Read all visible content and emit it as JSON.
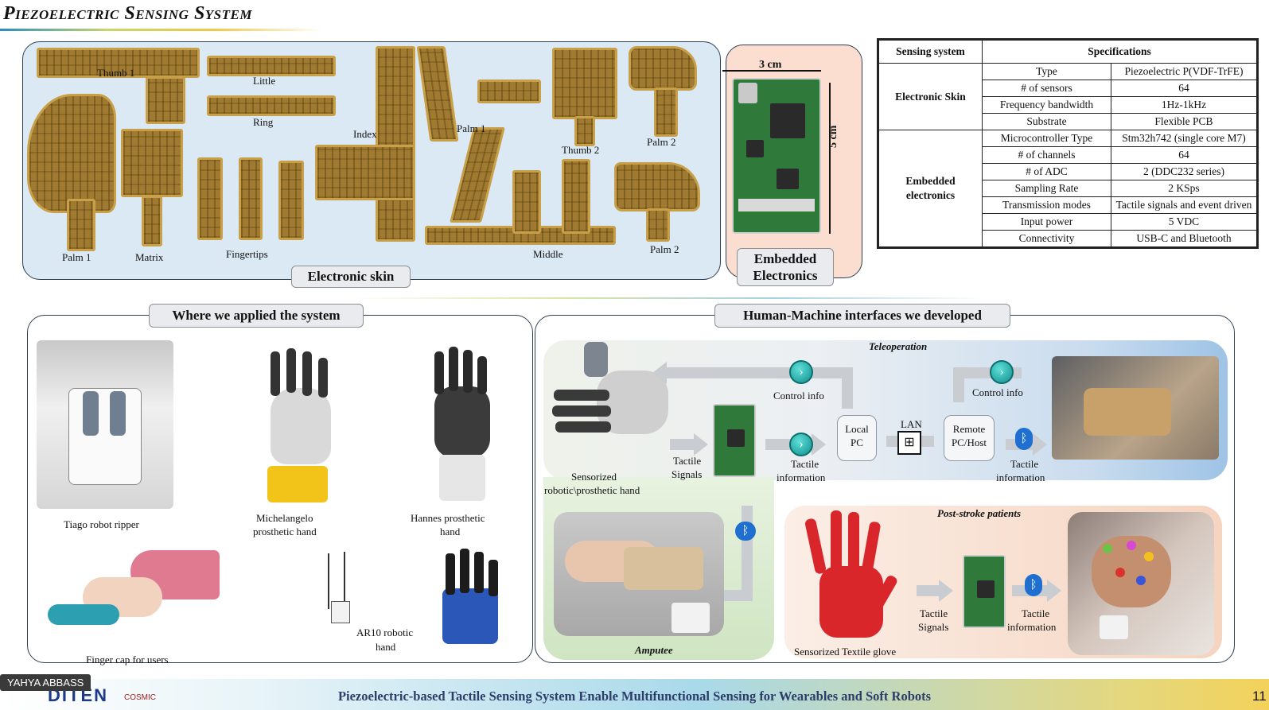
{
  "header": {
    "title": "Piezoelectric Sensing System"
  },
  "skin": {
    "tag": "Electronic skin",
    "labels": {
      "thumb1": "Thumb 1",
      "little": "Little",
      "ring": "Ring",
      "index": "Index",
      "palm1_top": "Palm 1",
      "thumb2": "Thumb 2",
      "palm2_top": "Palm 2",
      "palm1_bottom": "Palm 1",
      "matrix": "Matrix",
      "fingertips": "Fingertips",
      "middle": "Middle",
      "palm2_bottom": "Palm 2"
    }
  },
  "embedded": {
    "tag_line1": "Embedded",
    "tag_line2": "Electronics",
    "width_label": "3 cm",
    "height_label": "5 cm"
  },
  "specs": {
    "header_left": "Sensing system",
    "header_right": "Specifications",
    "group1": "Electronic Skin",
    "group2_line1": "Embedded",
    "group2_line2": "electronics",
    "rows": [
      {
        "k": "Type",
        "v": "Piezoelectric P(VDF-TrFE)"
      },
      {
        "k": "# of sensors",
        "v": "64"
      },
      {
        "k": "Frequency bandwidth",
        "v": "1Hz-1kHz"
      },
      {
        "k": "Substrate",
        "v": "Flexible PCB"
      },
      {
        "k": "Microcontroller Type",
        "v": "Stm32h742 (single core M7)"
      },
      {
        "k": "# of channels",
        "v": "64"
      },
      {
        "k": "# of ADC",
        "v": "2 (DDC232 series)"
      },
      {
        "k": "Sampling Rate",
        "v": "2 KSps"
      },
      {
        "k": "Transmission modes",
        "v": "Tactile signals and event driven"
      },
      {
        "k": "Input power",
        "v": "5 VDC"
      },
      {
        "k": "Connectivity",
        "v": "USB-C and Bluetooth"
      }
    ]
  },
  "apps": {
    "tag": "Where we applied the system",
    "tiago": "Tiago robot ripper",
    "mich_1": "Michelangelo",
    "mich_2": "prosthetic hand",
    "hannes_1": "Hannes prosthetic",
    "hannes_2": "hand",
    "fingercap": "Finger cap for users",
    "ar10_1": "AR10 robotic",
    "ar10_2": "hand"
  },
  "hmi": {
    "tag": "Human-Machine interfaces we developed",
    "teleop": "Teleoperation",
    "control_info_1": "Control info",
    "control_info_2": "Control info",
    "local_pc_1": "Local",
    "local_pc_2": "PC",
    "lan": "LAN",
    "remote_1": "Remote",
    "remote_2": "PC/Host",
    "sensorized_1": "Sensorized",
    "sensorized_2": "robotic\\prosthetic hand",
    "tactile_signals_1": "Tactile",
    "tactile_signals_2": "Signals",
    "tactile_info_1": "Tactile",
    "tactile_info_2": "information",
    "tactile_info_3": "Tactile",
    "tactile_info_4": "information",
    "amputee": "Amputee",
    "post_stroke": "Post-stroke patients",
    "textile_glove": "Sensorized Textile glove",
    "ts2_1": "Tactile",
    "ts2_2": "Signals",
    "ti2_1": "Tactile",
    "ti2_2": "information"
  },
  "footer": {
    "text": "Piezoelectric-based Tactile Sensing System Enable Multifunctional Sensing for Wearables and Soft Robots",
    "presenter": "YAHYA ABBASS",
    "page": "11",
    "logo1": "DITEN",
    "logo2": "COSMIC"
  },
  "colors": {
    "panel_blue": "#dbe9f4",
    "panel_peach": "#fbded0",
    "footer_text": "#2d3e6a"
  }
}
